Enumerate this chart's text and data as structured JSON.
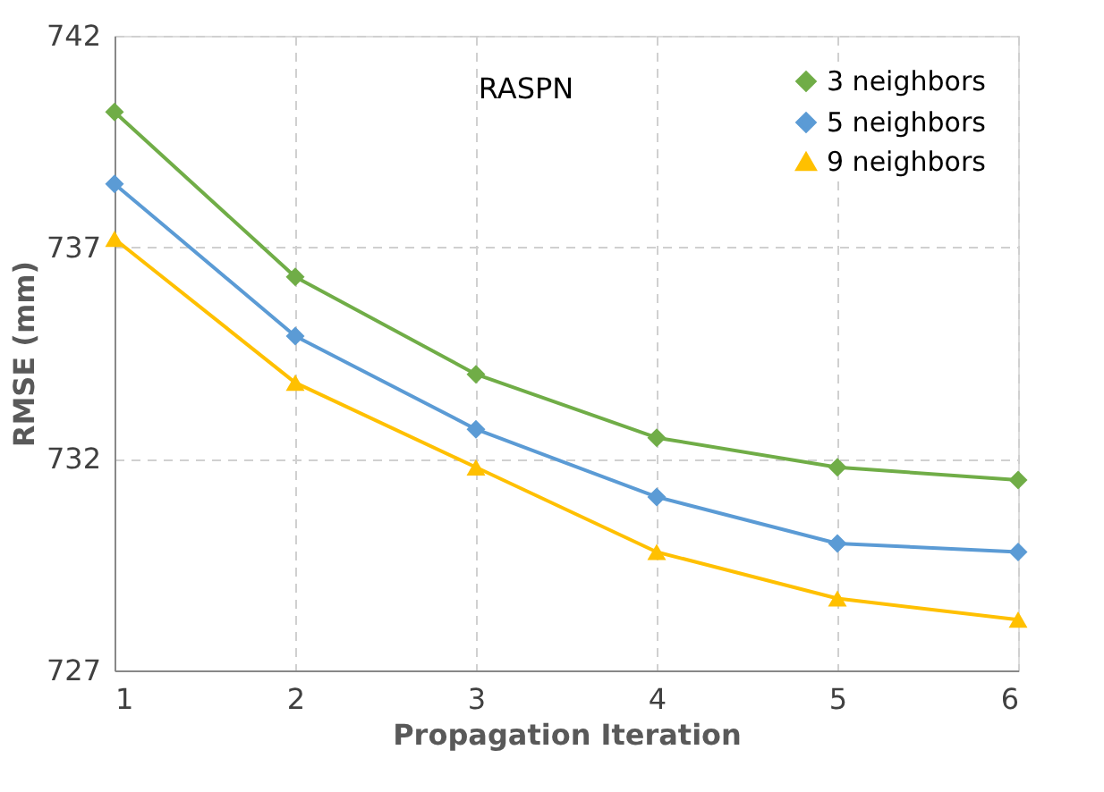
{
  "chart_data": {
    "type": "line",
    "xlabel": "Propagation Iteration",
    "ylabel": "RMSE (mm)",
    "annotations": [
      "RASPN"
    ],
    "x": [
      1,
      2,
      3,
      4,
      5,
      6
    ],
    "series": [
      {
        "name": "3 neighbors",
        "color": "#70ad47",
        "marker": "diamond",
        "values": [
          740.2,
          736.3,
          734.0,
          732.5,
          731.8,
          731.5
        ]
      },
      {
        "name": "5 neighbors",
        "color": "#5b9bd5",
        "marker": "diamond",
        "values": [
          738.5,
          734.9,
          732.7,
          731.1,
          730.0,
          729.8
        ]
      },
      {
        "name": "9 neighbors",
        "color": "#ffc000",
        "marker": "triangle",
        "values": [
          737.2,
          733.8,
          731.8,
          729.8,
          728.7,
          728.2
        ]
      }
    ],
    "xlim": [
      1,
      6
    ],
    "xticks": [
      1,
      2,
      3,
      4,
      5,
      6
    ],
    "ylim": [
      727,
      742
    ],
    "yticks": [
      727,
      732,
      737,
      742
    ],
    "grid": true,
    "legend": "top right",
    "line_style": "solid"
  }
}
